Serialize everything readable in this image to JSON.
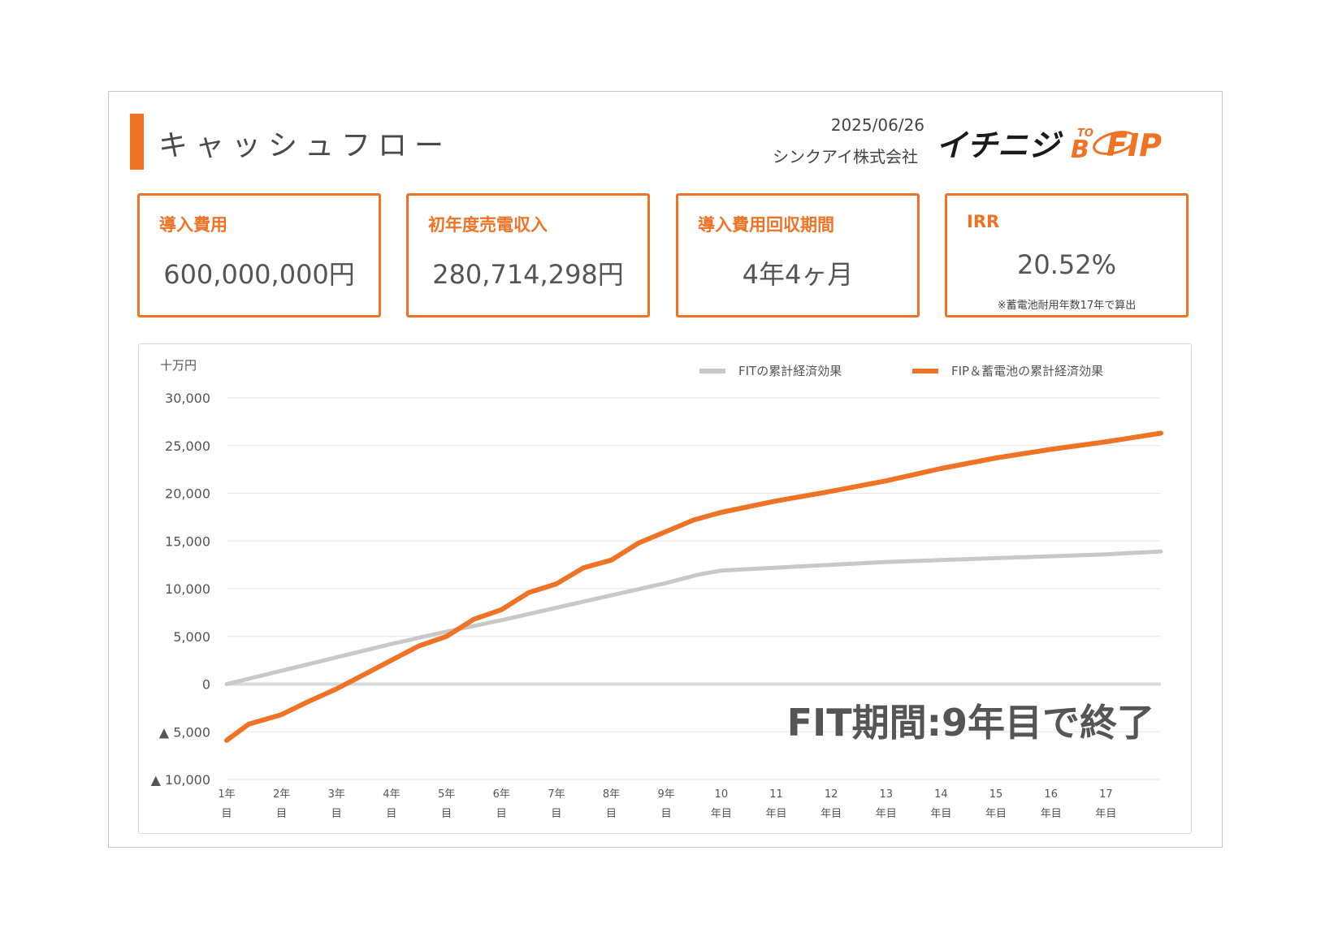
{
  "header": {
    "title": "キャッシュフロー",
    "date": "2025/06/26",
    "company": "シンクアイ株式会社",
    "logo": {
      "text_main": "イチニジ",
      "text_to": "TO",
      "text_b": "B",
      "text_fip": "FIP"
    }
  },
  "kpis": [
    {
      "label": "導入費用",
      "value": "600,000,000円",
      "note": ""
    },
    {
      "label": "初年度売電収入",
      "value": "280,714,298円",
      "note": ""
    },
    {
      "label": "導入費用回収期間",
      "value": "4年4ヶ月",
      "note": ""
    },
    {
      "label": "IRR",
      "value": "20.52%",
      "note": "※蓄電池耐用年数17年で算出"
    }
  ],
  "colors": {
    "accent": "#f07224",
    "fit_line": "#c8c8c8",
    "fip_line": "#f07224",
    "zero_line": "#d9d9d9",
    "grid": "#e6e6e6"
  },
  "chart_data": {
    "type": "line",
    "unit_label": "十万円",
    "ylim": [
      -10000,
      30000
    ],
    "yticks": [
      30000,
      25000,
      20000,
      15000,
      10000,
      5000,
      0,
      -5000,
      -10000
    ],
    "ytick_labels": [
      "30,000",
      "25,000",
      "20,000",
      "15,000",
      "10,000",
      "5,000",
      "0",
      "▲ 5,000",
      "▲ 10,000"
    ],
    "x_labels": [
      [
        "1年",
        "目"
      ],
      [
        "2年",
        "目"
      ],
      [
        "3年",
        "目"
      ],
      [
        "4年",
        "目"
      ],
      [
        "5年",
        "目"
      ],
      [
        "6年",
        "目"
      ],
      [
        "7年",
        "目"
      ],
      [
        "8年",
        "目"
      ],
      [
        "9年",
        "目"
      ],
      [
        "10",
        "年目"
      ],
      [
        "11",
        "年目"
      ],
      [
        "12",
        "年目"
      ],
      [
        "13",
        "年目"
      ],
      [
        "14",
        "年目"
      ],
      [
        "15",
        "年目"
      ],
      [
        "16",
        "年目"
      ],
      [
        "17",
        "年目"
      ]
    ],
    "x_year_range": [
      1,
      18
    ],
    "series": [
      {
        "name": "FITの累計経済効果",
        "color": "#c8c8c8",
        "x": [
          1,
          2,
          3,
          4,
          5,
          6,
          7,
          8,
          9,
          9.6,
          10,
          11,
          12,
          13,
          14,
          15,
          16,
          17,
          18
        ],
        "values": [
          0,
          1400,
          2800,
          4200,
          5500,
          6700,
          8000,
          9300,
          10600,
          11500,
          11900,
          12200,
          12500,
          12800,
          13000,
          13200,
          13400,
          13600,
          13900
        ]
      },
      {
        "name": "FIP＆蓄電池の累計経済効果",
        "color": "#f07224",
        "x": [
          1,
          1.4,
          2,
          2.5,
          3,
          3.5,
          4,
          4.5,
          5,
          5.5,
          6,
          6.5,
          7,
          7.5,
          8,
          8.5,
          9,
          9.5,
          10,
          11,
          12,
          13,
          14,
          15,
          16,
          17,
          18
        ],
        "values": [
          -5900,
          -4200,
          -3200,
          -1800,
          -500,
          1000,
          2500,
          4000,
          5000,
          6800,
          7800,
          9600,
          10500,
          12200,
          13000,
          14800,
          16000,
          17200,
          18000,
          19200,
          20200,
          21300,
          22600,
          23700,
          24600,
          25400,
          26300
        ]
      }
    ],
    "annotation": "FIT期間:9年目で終了"
  }
}
